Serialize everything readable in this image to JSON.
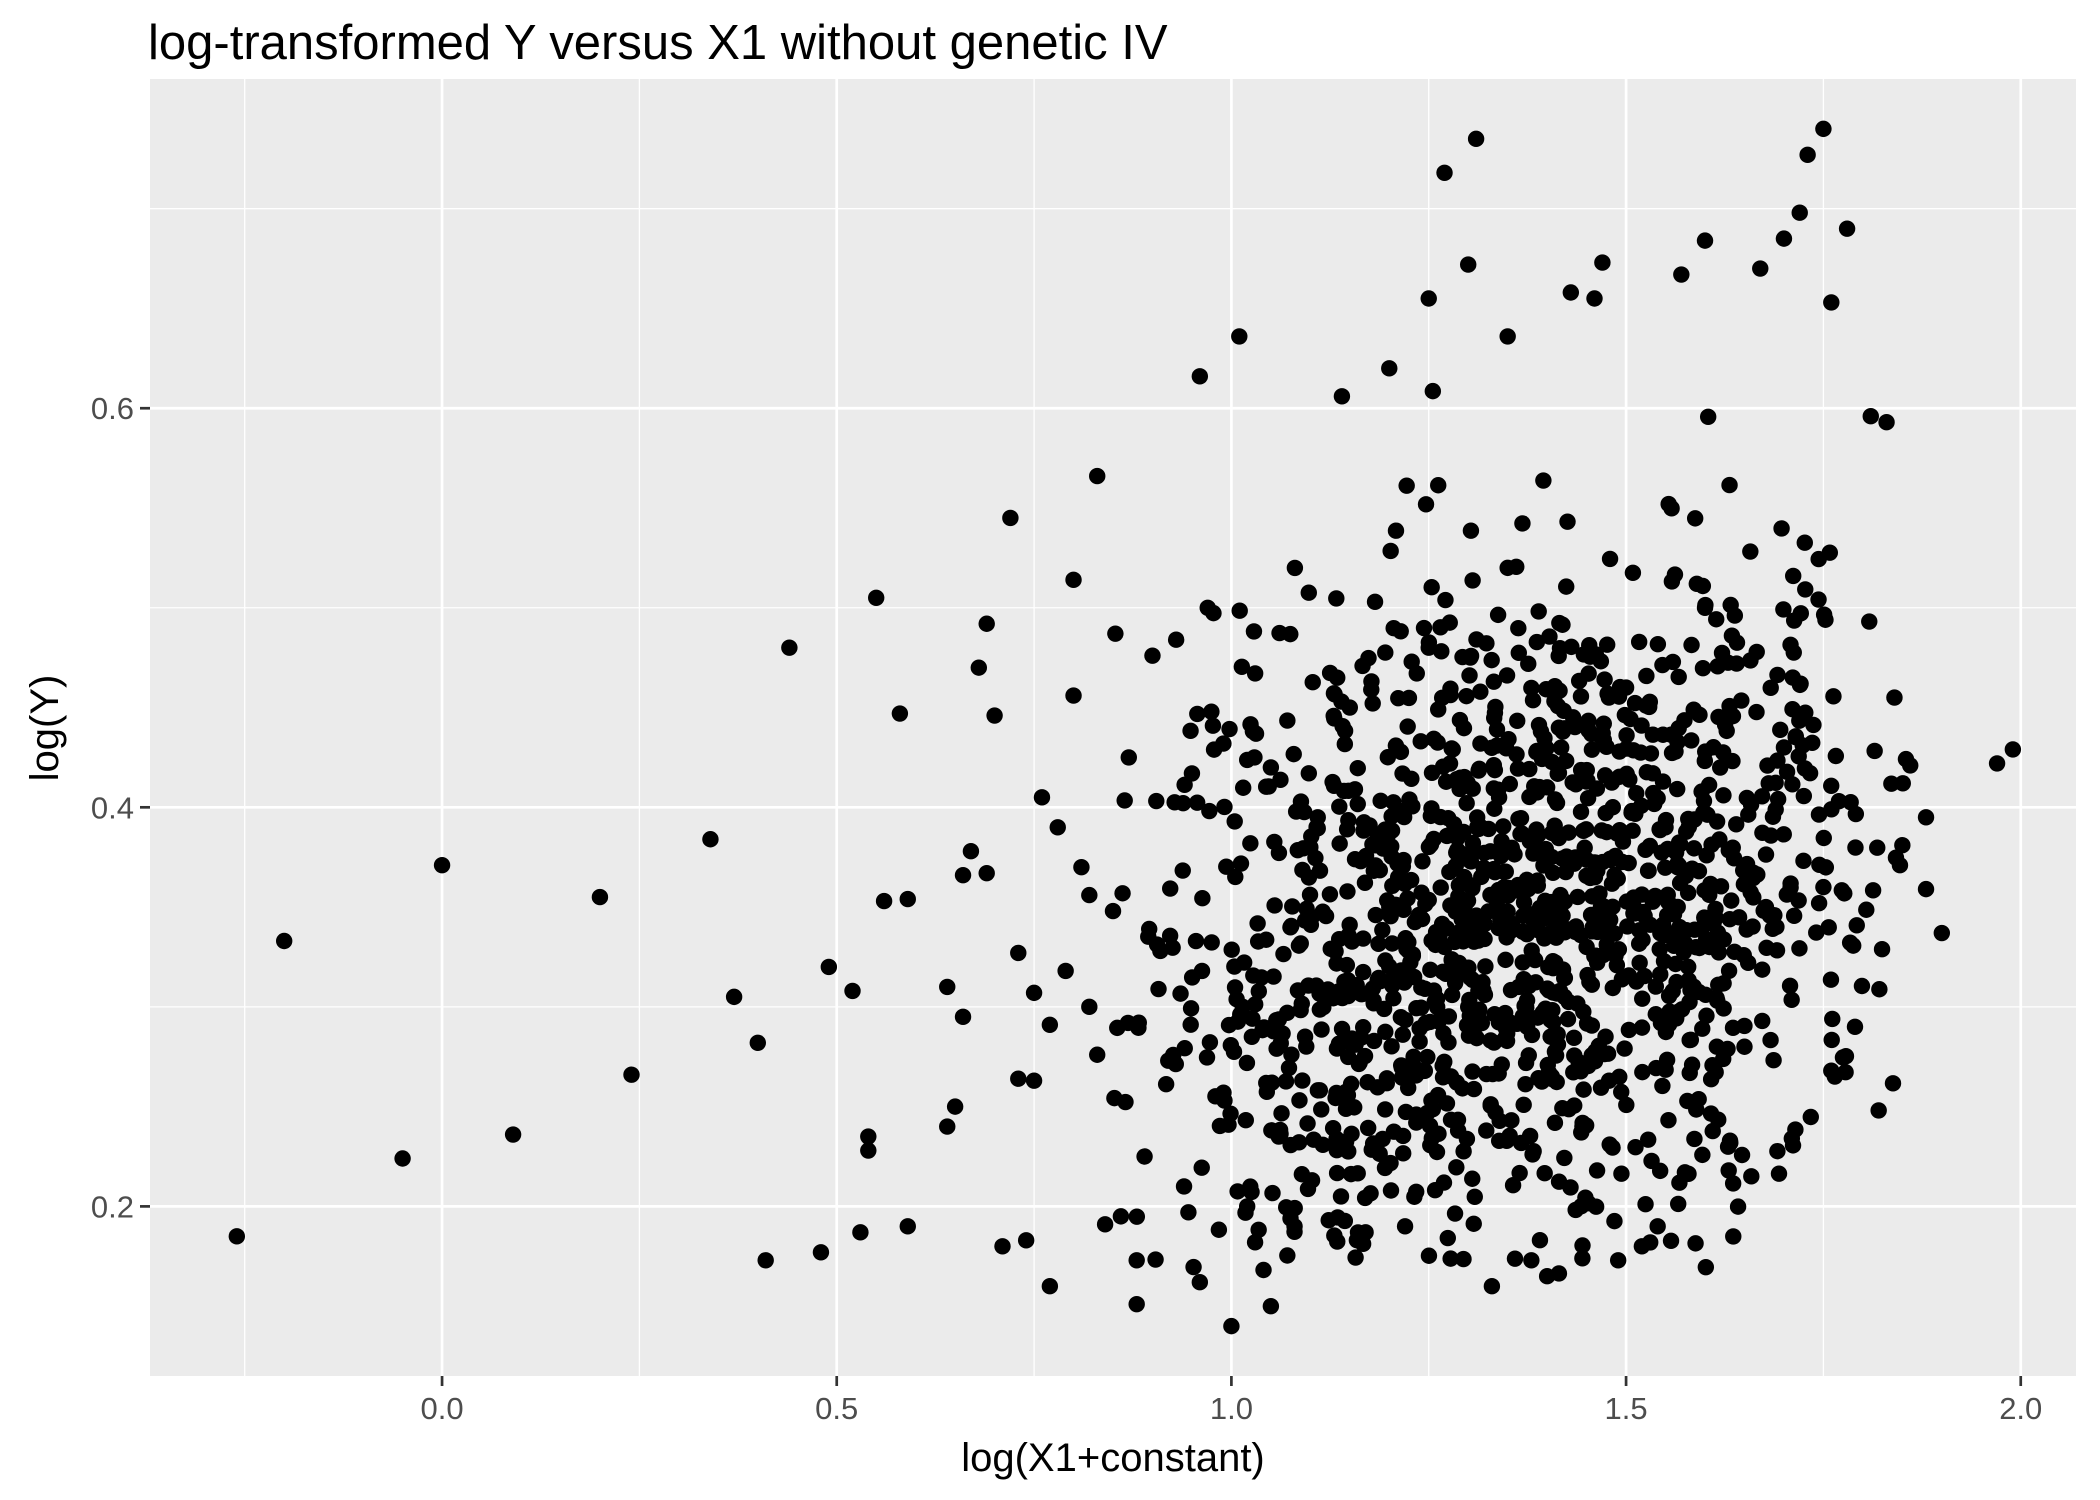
{
  "chart_data": {
    "type": "scatter",
    "title": "log-transformed Y versus X1 without genetic IV",
    "xlabel": "log(X1+constant)",
    "ylabel": "log(Y)",
    "xlim": [
      -0.37,
      2.07
    ],
    "ylim": [
      0.115,
      0.765
    ],
    "x_ticks": [
      0.0,
      0.5,
      1.0,
      1.5,
      2.0
    ],
    "x_tick_labels": [
      "0.0",
      "0.5",
      "1.0",
      "1.5",
      "2.0"
    ],
    "y_ticks": [
      0.2,
      0.4,
      0.6
    ],
    "y_tick_labels": [
      "0.2",
      "0.4",
      "0.6"
    ],
    "grid": true,
    "legend": "none",
    "point_color": "#000000",
    "panel_color": "#EBEBEB",
    "grid_color": "#FFFFFF",
    "points_listed_note": "Points are approximate readings of clearly resolvable markers; the dense central cloud (roughly x 0.9–1.85, y 0.17–0.66) contains many more overlapping points than listed.",
    "series": [
      {
        "points": [
          [
            -0.26,
            0.185
          ],
          [
            -0.2,
            0.333
          ],
          [
            -0.05,
            0.224
          ],
          [
            0.0,
            0.371
          ],
          [
            0.09,
            0.236
          ],
          [
            0.2,
            0.355
          ],
          [
            0.24,
            0.266
          ],
          [
            0.34,
            0.384
          ],
          [
            0.37,
            0.305
          ],
          [
            0.4,
            0.282
          ],
          [
            0.41,
            0.173
          ],
          [
            0.44,
            0.48
          ],
          [
            0.48,
            0.177
          ],
          [
            0.49,
            0.32
          ],
          [
            0.52,
            0.308
          ],
          [
            0.53,
            0.187
          ],
          [
            0.54,
            0.235
          ],
          [
            0.54,
            0.228
          ],
          [
            0.55,
            0.505
          ],
          [
            0.56,
            0.353
          ],
          [
            0.58,
            0.447
          ],
          [
            0.59,
            0.354
          ],
          [
            0.59,
            0.19
          ],
          [
            0.64,
            0.31
          ],
          [
            0.64,
            0.24
          ],
          [
            0.65,
            0.25
          ],
          [
            0.66,
            0.366
          ],
          [
            0.66,
            0.295
          ],
          [
            0.67,
            0.378
          ],
          [
            0.68,
            0.47
          ],
          [
            0.69,
            0.492
          ],
          [
            0.69,
            0.367
          ],
          [
            0.7,
            0.446
          ],
          [
            0.71,
            0.18
          ],
          [
            0.72,
            0.545
          ],
          [
            0.73,
            0.264
          ],
          [
            0.73,
            0.327
          ],
          [
            0.74,
            0.183
          ],
          [
            0.75,
            0.307
          ],
          [
            0.75,
            0.263
          ],
          [
            0.76,
            0.405
          ],
          [
            0.77,
            0.291
          ],
          [
            0.77,
            0.16
          ],
          [
            0.78,
            0.39
          ],
          [
            0.79,
            0.318
          ],
          [
            0.8,
            0.514
          ],
          [
            0.8,
            0.456
          ],
          [
            0.81,
            0.37
          ],
          [
            0.82,
            0.356
          ],
          [
            0.82,
            0.3
          ],
          [
            0.83,
            0.566
          ],
          [
            0.83,
            0.276
          ],
          [
            0.84,
            0.191
          ],
          [
            0.85,
            0.348
          ],
          [
            0.86,
            0.195
          ],
          [
            0.87,
            0.425
          ],
          [
            0.88,
            0.173
          ],
          [
            0.88,
            0.151
          ],
          [
            0.89,
            0.225
          ],
          [
            0.9,
            0.476
          ],
          [
            0.91,
            0.328
          ],
          [
            0.92,
            0.273
          ],
          [
            0.93,
            0.484
          ],
          [
            0.94,
            0.21
          ],
          [
            0.95,
            0.417
          ],
          [
            0.96,
            0.616
          ],
          [
            0.96,
            0.162
          ],
          [
            0.97,
            0.5
          ],
          [
            0.99,
            0.257
          ],
          [
            1.0,
            0.14
          ],
          [
            1.01,
            0.636
          ],
          [
            1.02,
            0.2
          ],
          [
            1.03,
            0.182
          ],
          [
            1.05,
            0.15
          ],
          [
            1.06,
            0.235
          ],
          [
            1.08,
            0.19
          ],
          [
            1.14,
            0.606
          ],
          [
            1.17,
            0.187
          ],
          [
            1.2,
            0.62
          ],
          [
            1.22,
            0.19
          ],
          [
            1.25,
            0.655
          ],
          [
            1.27,
            0.718
          ],
          [
            1.3,
            0.672
          ],
          [
            1.31,
            0.735
          ],
          [
            1.33,
            0.16
          ],
          [
            1.35,
            0.636
          ],
          [
            1.38,
            0.173
          ],
          [
            1.4,
            0.165
          ],
          [
            1.43,
            0.658
          ],
          [
            1.46,
            0.655
          ],
          [
            1.47,
            0.673
          ],
          [
            1.49,
            0.173
          ],
          [
            1.52,
            0.18
          ],
          [
            1.54,
            0.19
          ],
          [
            1.57,
            0.667
          ],
          [
            1.6,
            0.684
          ],
          [
            1.63,
            0.218
          ],
          [
            1.67,
            0.67
          ],
          [
            1.7,
            0.685
          ],
          [
            1.72,
            0.698
          ],
          [
            1.73,
            0.727
          ],
          [
            1.75,
            0.74
          ],
          [
            1.76,
            0.653
          ],
          [
            1.78,
            0.69
          ],
          [
            1.71,
            0.234
          ],
          [
            1.76,
            0.268
          ],
          [
            1.79,
            0.29
          ],
          [
            1.81,
            0.596
          ],
          [
            1.83,
            0.593
          ],
          [
            1.84,
            0.455
          ],
          [
            1.85,
            0.381
          ],
          [
            1.86,
            0.421
          ],
          [
            1.88,
            0.395
          ],
          [
            1.88,
            0.359
          ],
          [
            1.9,
            0.337
          ],
          [
            1.97,
            0.422
          ],
          [
            1.99,
            0.429
          ],
          [
            1.05,
            0.42
          ],
          [
            1.1,
            0.38
          ],
          [
            1.15,
            0.45
          ],
          [
            1.2,
            0.35
          ],
          [
            1.25,
            0.48
          ],
          [
            1.3,
            0.3
          ],
          [
            1.35,
            0.52
          ],
          [
            1.4,
            0.41
          ],
          [
            1.45,
            0.33
          ],
          [
            1.5,
            0.46
          ],
          [
            1.55,
            0.39
          ],
          [
            1.6,
            0.5
          ],
          [
            1.65,
            0.28
          ],
          [
            1.7,
            0.43
          ],
          [
            1.75,
            0.36
          ]
        ]
      }
    ]
  }
}
